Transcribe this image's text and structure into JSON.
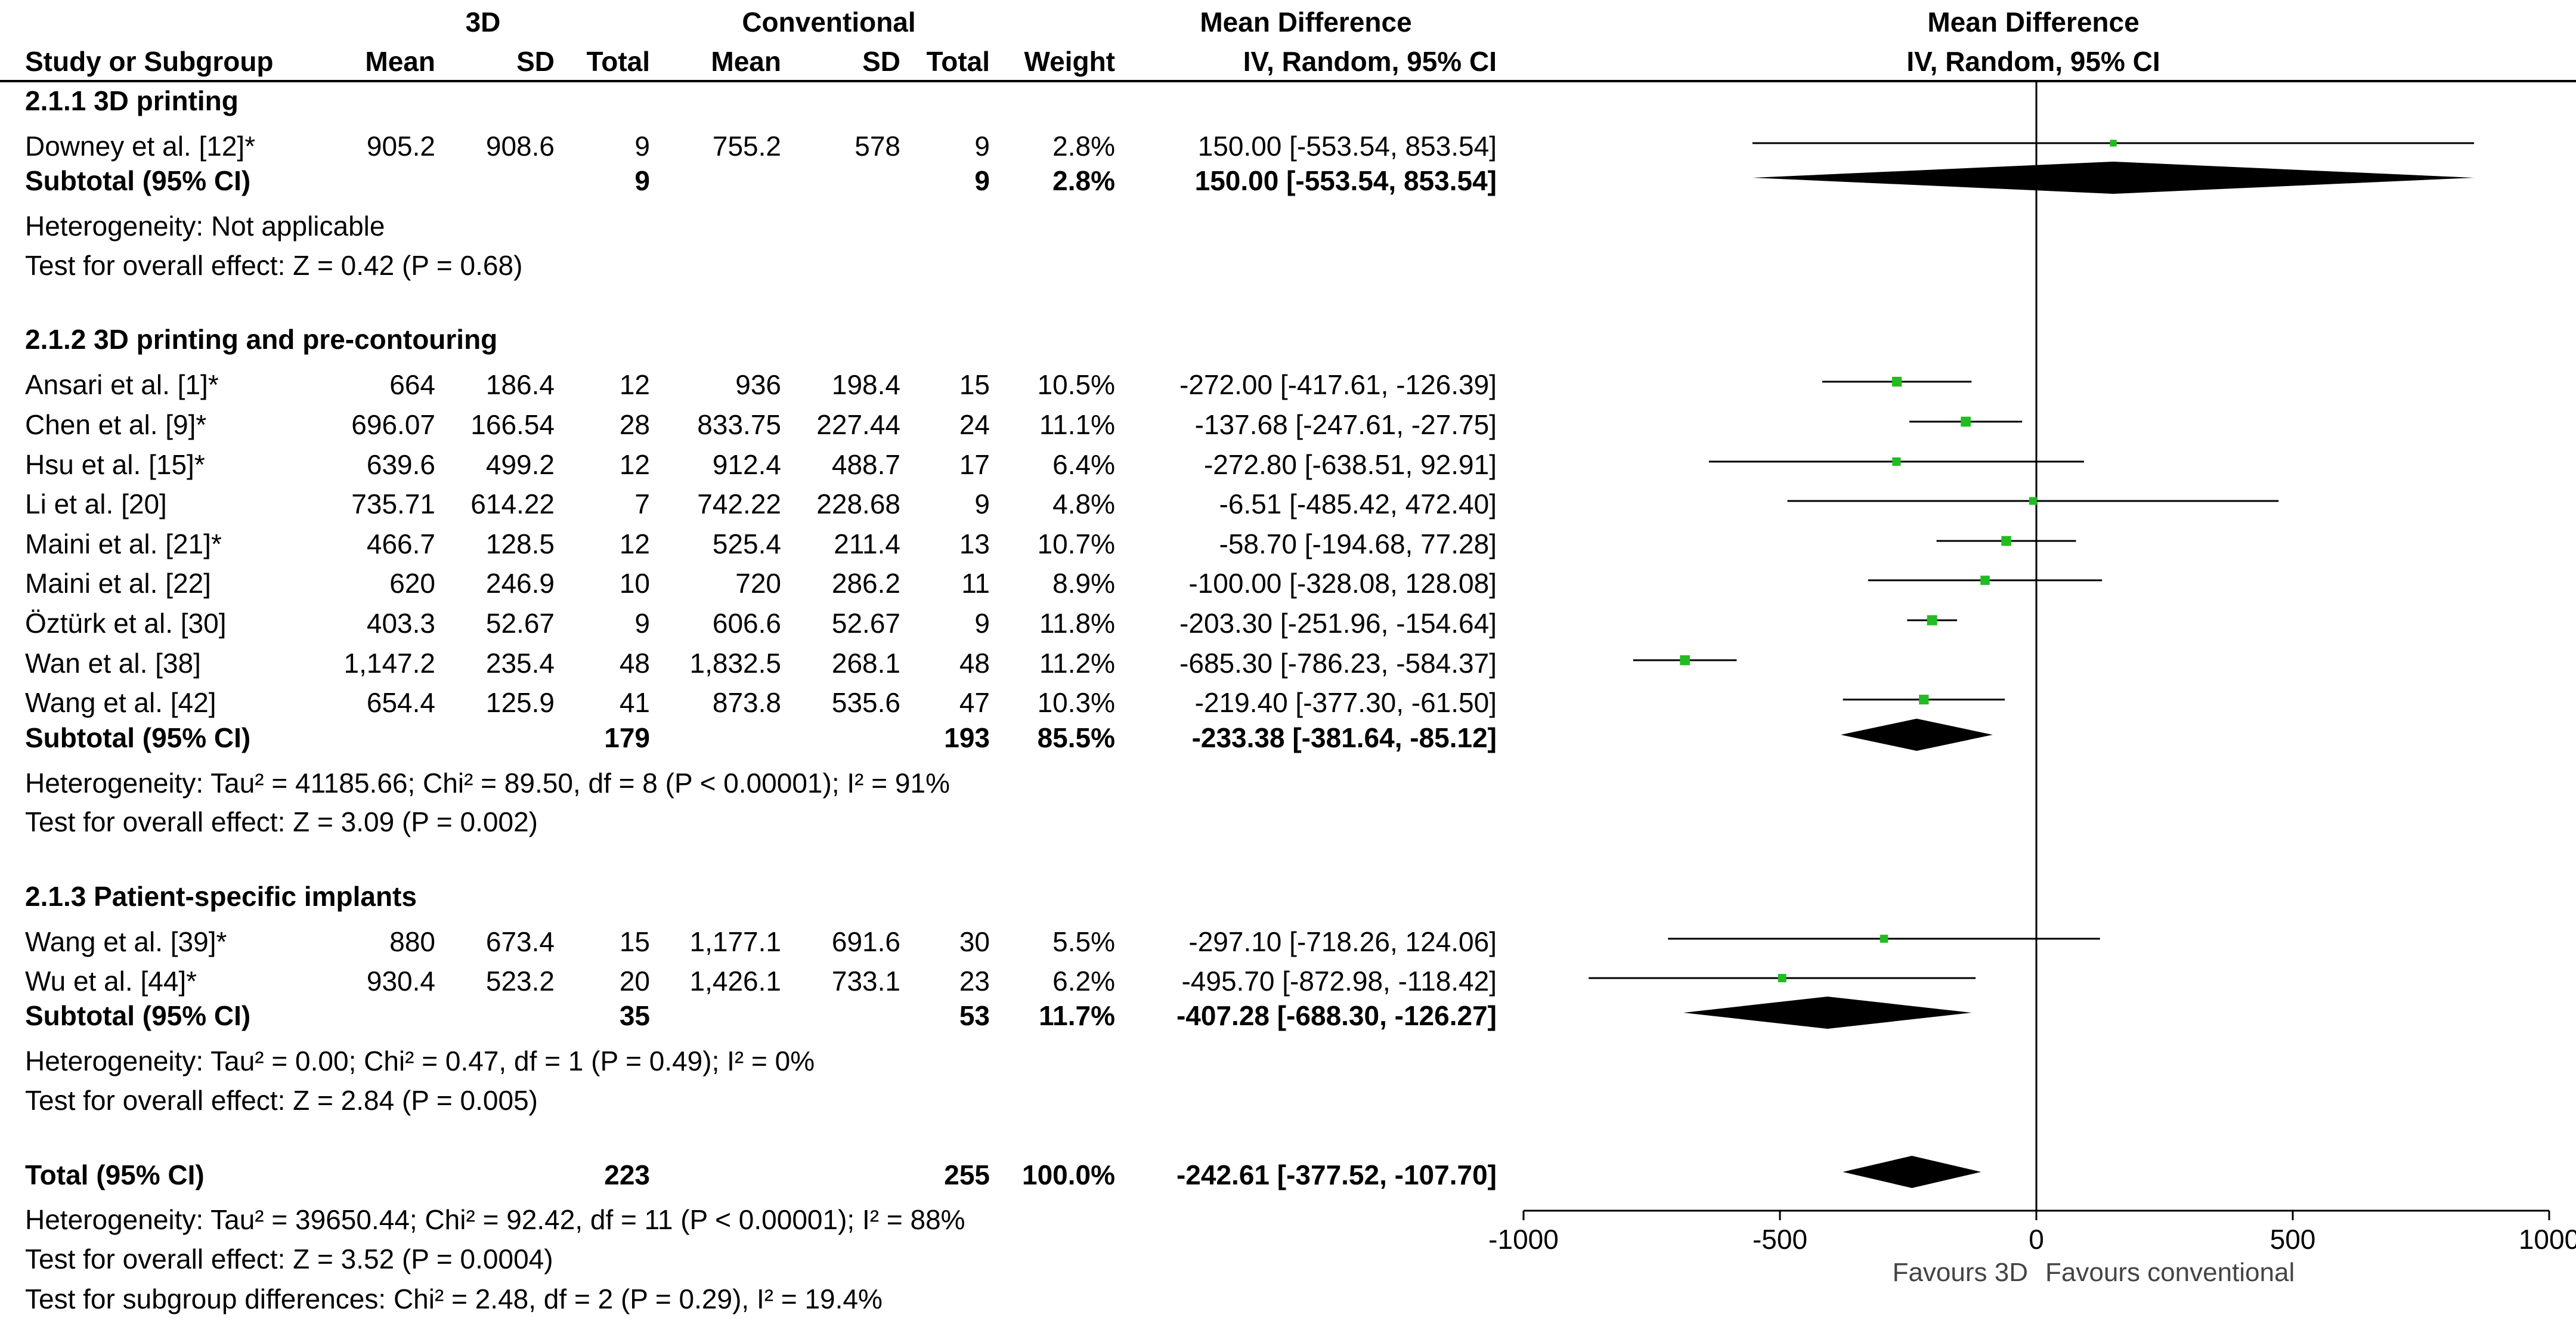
{
  "header": {
    "group_3d": "3D",
    "group_conv": "Conventional",
    "md_title_left": "Mean Difference",
    "md_title_right": "Mean Difference",
    "col_study": "Study or Subgroup",
    "col_mean_3d": "Mean",
    "col_sd_3d": "SD",
    "col_total_3d": "Total",
    "col_mean_conv": "Mean",
    "col_sd_conv": "SD",
    "col_total_conv": "Total",
    "col_weight": "Weight",
    "col_md": "IV, Random, 95% CI",
    "col_md_right": "IV, Random, 95% CI"
  },
  "sections": [
    {
      "title": "2.1.1 3D printing",
      "studies": [
        {
          "name": "Downey et al. [12]*",
          "mean3d": "905.2",
          "sd3d": "908.6",
          "n3d": "9",
          "meanc": "755.2",
          "sdc": "578",
          "nc": "9",
          "weight": "2.8%",
          "ci": "150.00 [-553.54, 853.54]"
        }
      ],
      "subtotal": {
        "label": "Subtotal (95% CI)",
        "n3d": "9",
        "nc": "9",
        "weight": "2.8%",
        "ci": "150.00 [-553.54, 853.54]"
      },
      "heterogeneity": "Heterogeneity: Not applicable",
      "overall": "Test for overall effect: Z = 0.42 (P = 0.68)"
    },
    {
      "title": "2.1.2 3D printing and pre-contouring",
      "studies": [
        {
          "name": "Ansari et al. [1]*",
          "mean3d": "664",
          "sd3d": "186.4",
          "n3d": "12",
          "meanc": "936",
          "sdc": "198.4",
          "nc": "15",
          "weight": "10.5%",
          "ci": "-272.00 [-417.61, -126.39]"
        },
        {
          "name": "Chen et al. [9]*",
          "mean3d": "696.07",
          "sd3d": "166.54",
          "n3d": "28",
          "meanc": "833.75",
          "sdc": "227.44",
          "nc": "24",
          "weight": "11.1%",
          "ci": "-137.68 [-247.61, -27.75]"
        },
        {
          "name": "Hsu et al. [15]*",
          "mean3d": "639.6",
          "sd3d": "499.2",
          "n3d": "12",
          "meanc": "912.4",
          "sdc": "488.7",
          "nc": "17",
          "weight": "6.4%",
          "ci": "-272.80 [-638.51, 92.91]"
        },
        {
          "name": "Li et al. [20]",
          "mean3d": "735.71",
          "sd3d": "614.22",
          "n3d": "7",
          "meanc": "742.22",
          "sdc": "228.68",
          "nc": "9",
          "weight": "4.8%",
          "ci": "-6.51 [-485.42, 472.40]"
        },
        {
          "name": "Maini et al. [21]*",
          "mean3d": "466.7",
          "sd3d": "128.5",
          "n3d": "12",
          "meanc": "525.4",
          "sdc": "211.4",
          "nc": "13",
          "weight": "10.7%",
          "ci": "-58.70 [-194.68, 77.28]"
        },
        {
          "name": "Maini et al. [22]",
          "mean3d": "620",
          "sd3d": "246.9",
          "n3d": "10",
          "meanc": "720",
          "sdc": "286.2",
          "nc": "11",
          "weight": "8.9%",
          "ci": "-100.00 [-328.08, 128.08]"
        },
        {
          "name": "Öztürk et al. [30]",
          "mean3d": "403.3",
          "sd3d": "52.67",
          "n3d": "9",
          "meanc": "606.6",
          "sdc": "52.67",
          "nc": "9",
          "weight": "11.8%",
          "ci": "-203.30 [-251.96, -154.64]"
        },
        {
          "name": "Wan et al. [38]",
          "mean3d": "1,147.2",
          "sd3d": "235.4",
          "n3d": "48",
          "meanc": "1,832.5",
          "sdc": "268.1",
          "nc": "48",
          "weight": "11.2%",
          "ci": "-685.30 [-786.23, -584.37]"
        },
        {
          "name": "Wang et al. [42]",
          "mean3d": "654.4",
          "sd3d": "125.9",
          "n3d": "41",
          "meanc": "873.8",
          "sdc": "535.6",
          "nc": "47",
          "weight": "10.3%",
          "ci": "-219.40 [-377.30, -61.50]"
        }
      ],
      "subtotal": {
        "label": "Subtotal (95% CI)",
        "n3d": "179",
        "nc": "193",
        "weight": "85.5%",
        "ci": "-233.38 [-381.64, -85.12]"
      },
      "heterogeneity": "Heterogeneity: Tau² = 41185.66; Chi² = 89.50, df = 8 (P < 0.00001); I² = 91%",
      "overall": "Test for overall effect: Z = 3.09 (P = 0.002)"
    },
    {
      "title": "2.1.3 Patient-specific implants",
      "studies": [
        {
          "name": "Wang et al. [39]*",
          "mean3d": "880",
          "sd3d": "673.4",
          "n3d": "15",
          "meanc": "1,177.1",
          "sdc": "691.6",
          "nc": "30",
          "weight": "5.5%",
          "ci": "-297.10 [-718.26, 124.06]"
        },
        {
          "name": "Wu et al. [44]*",
          "mean3d": "930.4",
          "sd3d": "523.2",
          "n3d": "20",
          "meanc": "1,426.1",
          "sdc": "733.1",
          "nc": "23",
          "weight": "6.2%",
          "ci": "-495.70 [-872.98, -118.42]"
        }
      ],
      "subtotal": {
        "label": "Subtotal (95% CI)",
        "n3d": "35",
        "nc": "53",
        "weight": "11.7%",
        "ci": "-407.28 [-688.30, -126.27]"
      },
      "heterogeneity": "Heterogeneity: Tau² = 0.00; Chi² = 0.47, df = 1 (P = 0.49); I² = 0%",
      "overall": "Test for overall effect: Z = 2.84 (P = 0.005)"
    }
  ],
  "total": {
    "label": "Total (95% CI)",
    "n3d": "223",
    "nc": "255",
    "weight": "100.0%",
    "ci": "-242.61 [-377.52, -107.70]"
  },
  "footer": {
    "heterogeneity": "Heterogeneity: Tau² = 39650.44; Chi² = 92.42, df = 11 (P < 0.00001); I² = 88%",
    "overall": "Test for overall effect: Z = 3.52 (P = 0.0004)",
    "subgroup": "Test for subgroup differences: Chi² = 2.48, df = 2 (P = 0.29), I² = 19.4%"
  },
  "chart_data": {
    "type": "forest",
    "xlim": [
      -1000,
      1000
    ],
    "xticks": [
      -1000,
      -500,
      0,
      500,
      1000
    ],
    "xtick_labels": [
      "-1000",
      "-500",
      "0",
      "500",
      "1000"
    ],
    "favours_left": "Favours 3D",
    "favours_right": "Favours conventional",
    "square_color": "#22bb22",
    "diamond_color": "#000000",
    "studies": [
      {
        "name": "Downey et al. [12]*",
        "md": 150.0,
        "lo": -553.54,
        "hi": 853.54,
        "weight": 2.8
      },
      {
        "name": "Ansari et al. [1]*",
        "md": -272.0,
        "lo": -417.61,
        "hi": -126.39,
        "weight": 10.5
      },
      {
        "name": "Chen et al. [9]*",
        "md": -137.68,
        "lo": -247.61,
        "hi": -27.75,
        "weight": 11.1
      },
      {
        "name": "Hsu et al. [15]*",
        "md": -272.8,
        "lo": -638.51,
        "hi": 92.91,
        "weight": 6.4
      },
      {
        "name": "Li et al. [20]",
        "md": -6.51,
        "lo": -485.42,
        "hi": 472.4,
        "weight": 4.8
      },
      {
        "name": "Maini et al. [21]*",
        "md": -58.7,
        "lo": -194.68,
        "hi": 77.28,
        "weight": 10.7
      },
      {
        "name": "Maini et al. [22]",
        "md": -100.0,
        "lo": -328.08,
        "hi": 128.08,
        "weight": 8.9
      },
      {
        "name": "Öztürk et al. [30]",
        "md": -203.3,
        "lo": -251.96,
        "hi": -154.64,
        "weight": 11.8
      },
      {
        "name": "Wan et al. [38]",
        "md": -685.3,
        "lo": -786.23,
        "hi": -584.37,
        "weight": 11.2
      },
      {
        "name": "Wang et al. [42]",
        "md": -219.4,
        "lo": -377.3,
        "hi": -61.5,
        "weight": 10.3
      },
      {
        "name": "Wang et al. [39]*",
        "md": -297.1,
        "lo": -718.26,
        "hi": 124.06,
        "weight": 5.5
      },
      {
        "name": "Wu et al. [44]*",
        "md": -495.7,
        "lo": -872.98,
        "hi": -118.42,
        "weight": 6.2
      }
    ],
    "diamonds": [
      {
        "name": "Subtotal 2.1.1",
        "md": 150.0,
        "lo": -553.54,
        "hi": 853.54
      },
      {
        "name": "Subtotal 2.1.2",
        "md": -233.38,
        "lo": -381.64,
        "hi": -85.12
      },
      {
        "name": "Subtotal 2.1.3",
        "md": -407.28,
        "lo": -688.3,
        "hi": -126.27
      },
      {
        "name": "Total",
        "md": -242.61,
        "lo": -377.52,
        "hi": -107.7
      }
    ]
  }
}
